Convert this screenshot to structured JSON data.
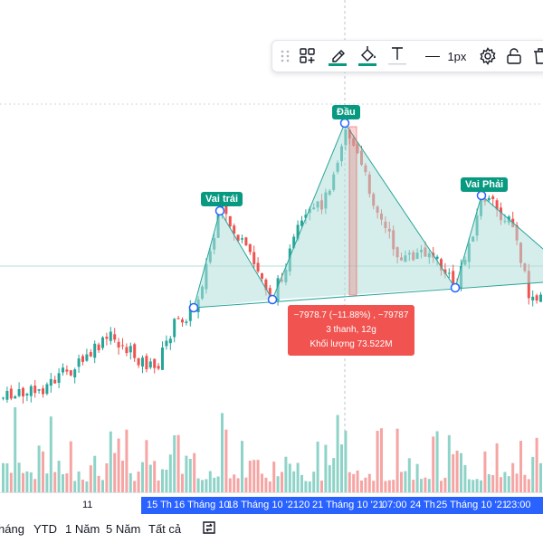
{
  "toolbar": {
    "line_width_label": "1px",
    "items": [
      "drag-handle",
      "template",
      "pencil",
      "fill",
      "text",
      "line-width",
      "settings",
      "lock",
      "delete"
    ]
  },
  "pattern": {
    "labels": {
      "left_shoulder": "Vai trái",
      "head": "Đầu",
      "right_shoulder": "Vai Phải"
    },
    "fill_color": "#b2dfdb",
    "line_color": "#26a69a"
  },
  "measure_tooltip": {
    "change": "−7978.7 (−11.88%) , −79787",
    "bars": "3 thanh, 12g",
    "volume": "Khối lượng 73.522M",
    "color": "#f05350"
  },
  "time_axis": {
    "labels": [
      "11",
      "15 Th",
      "16 Tháng 10",
      "18 Tháng 10 '21",
      "20",
      "21 Tháng 10 '21",
      "07:00",
      "24 Th",
      "25 Tháng 10 '21",
      "23:00"
    ]
  },
  "range_bar": {
    "items": [
      "háng",
      "YTD",
      "1 Năm",
      "5 Năm",
      "Tất cả"
    ]
  },
  "colors": {
    "up": "#26a69a",
    "down": "#ef5350",
    "vol_up": "#8fd3c8",
    "vol_down": "#f5a5a3",
    "selection": "#2962ff"
  }
}
